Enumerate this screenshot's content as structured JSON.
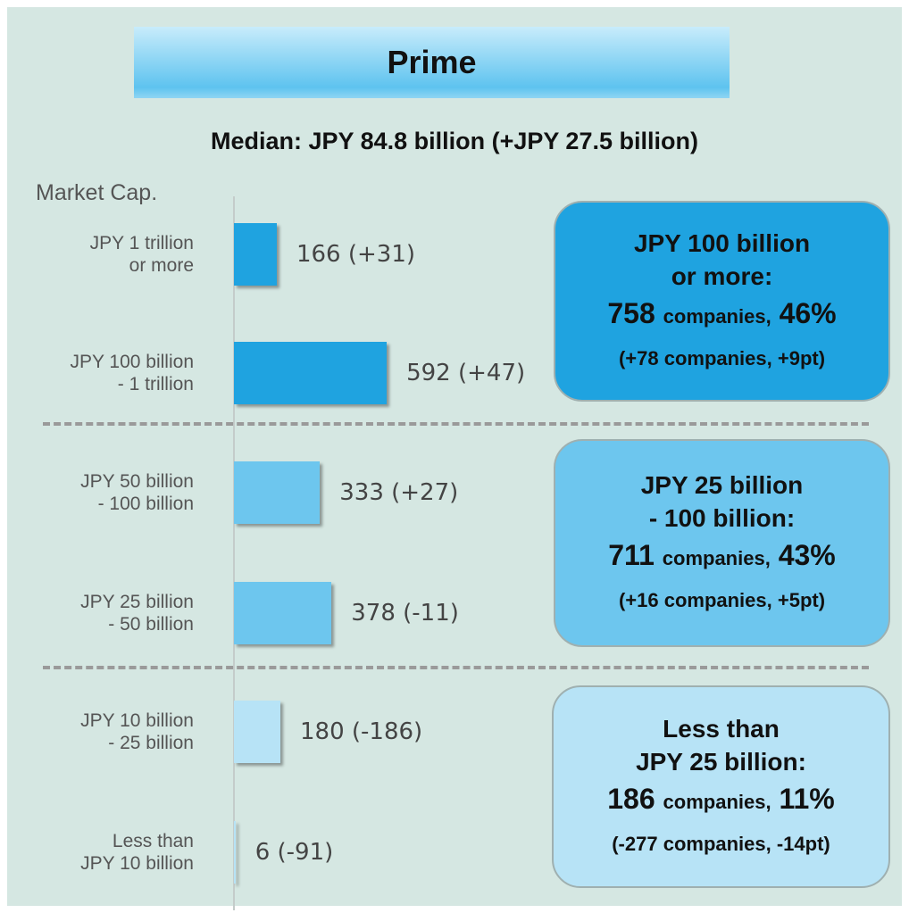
{
  "chart_data": {
    "type": "bar",
    "orientation": "horizontal",
    "title": "Prime",
    "subtitle": "Median: JPY 84.8 billion (+JPY 27.5 billion)",
    "ylabel": "Market Cap.",
    "categories": [
      "JPY 1 trillion\nor more",
      "JPY 100 billion\n- 1 trillion",
      "JPY 50 billion\n- 100 billion",
      "JPY 25 billion\n- 50 billion",
      "JPY 10 billion\n- 25 billion",
      "Less than\nJPY 10 billion"
    ],
    "values": [
      166,
      592,
      333,
      378,
      180,
      6
    ],
    "value_labels": [
      "166 (+31)",
      "592 (+47)",
      "333 (+27)",
      "378 (-11)",
      "180 (-186)",
      "6 (-91)"
    ],
    "colors": [
      "#1fa3e0",
      "#1fa3e0",
      "#6dc6ee",
      "#6dc6ee",
      "#b7e3f6",
      "#b7e3f6"
    ],
    "summaries": [
      {
        "title": "JPY 100 billion\nor more:",
        "count": 758,
        "count_unit": "companies,",
        "share": "46%",
        "change": "(+78 companies, +9pt)",
        "color": "#1fa3e0"
      },
      {
        "title": "JPY 25 billion\n- 100 billion:",
        "count": 711,
        "count_unit": "companies,",
        "share": "43%",
        "change": "(+16 companies, +5pt)",
        "color": "#6dc6ee"
      },
      {
        "title": "Less than\nJPY 25 billion:",
        "count": 186,
        "count_unit": "companies,",
        "share": "11%",
        "change": "(-277 companies, -14pt)",
        "color": "#b7e3f6"
      }
    ]
  }
}
